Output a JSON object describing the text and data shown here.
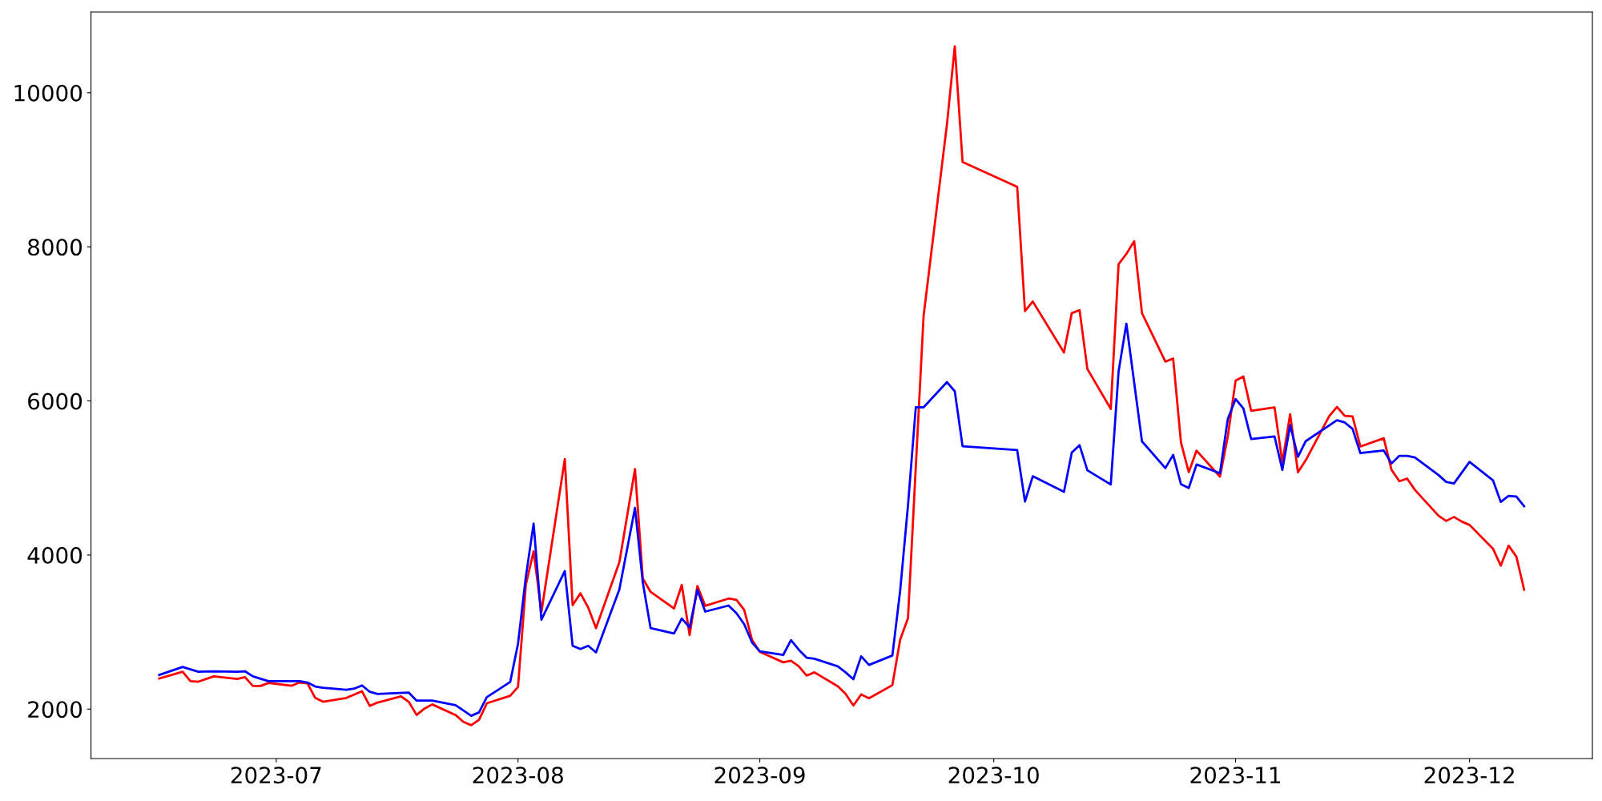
{
  "chart_data": {
    "type": "line",
    "xlim": [
      "2023-06-07T06:00",
      "2023-12-16T18:00"
    ],
    "xticks": [
      {
        "value": "2023-07-01",
        "label": "2023-07"
      },
      {
        "value": "2023-08-01",
        "label": "2023-08"
      },
      {
        "value": "2023-09-01",
        "label": "2023-09"
      },
      {
        "value": "2023-10-01",
        "label": "2023-10"
      },
      {
        "value": "2023-11-01",
        "label": "2023-11"
      },
      {
        "value": "2023-12-01",
        "label": "2023-12"
      }
    ],
    "ylim": [
      1358,
      11048
    ],
    "yticks": [
      2000,
      4000,
      6000,
      8000,
      10000
    ],
    "grid": false,
    "marker": "none",
    "line_style": "solid",
    "series": [
      {
        "color": "#ff0000",
        "x": [
          "2023-06-16",
          "2023-06-19",
          "2023-06-20",
          "2023-06-21",
          "2023-06-23",
          "2023-06-26",
          "2023-06-27",
          "2023-06-28",
          "2023-06-29",
          "2023-06-30",
          "2023-07-03",
          "2023-07-04",
          "2023-07-05",
          "2023-07-06",
          "2023-07-07",
          "2023-07-10",
          "2023-07-12",
          "2023-07-13",
          "2023-07-14",
          "2023-07-17",
          "2023-07-18",
          "2023-07-19",
          "2023-07-20",
          "2023-07-21",
          "2023-07-24",
          "2023-07-25",
          "2023-07-26",
          "2023-07-27",
          "2023-07-28",
          "2023-07-31",
          "2023-08-01",
          "2023-08-02",
          "2023-08-03",
          "2023-08-04",
          "2023-08-07",
          "2023-08-08",
          "2023-08-09",
          "2023-08-10",
          "2023-08-11",
          "2023-08-14",
          "2023-08-16",
          "2023-08-17",
          "2023-08-18",
          "2023-08-21",
          "2023-08-22",
          "2023-08-23",
          "2023-08-24",
          "2023-08-25",
          "2023-08-28",
          "2023-08-29",
          "2023-08-30",
          "2023-08-31",
          "2023-09-01",
          "2023-09-04",
          "2023-09-05",
          "2023-09-06",
          "2023-09-07",
          "2023-09-08",
          "2023-09-11",
          "2023-09-12",
          "2023-09-13",
          "2023-09-14",
          "2023-09-15",
          "2023-09-18",
          "2023-09-19",
          "2023-09-20",
          "2023-09-22",
          "2023-09-25",
          "2023-09-26",
          "2023-09-27",
          "2023-10-04",
          "2023-10-05",
          "2023-10-06",
          "2023-10-10",
          "2023-10-11",
          "2023-10-12",
          "2023-10-13",
          "2023-10-16",
          "2023-10-17",
          "2023-10-18",
          "2023-10-19",
          "2023-10-20",
          "2023-10-23",
          "2023-10-24",
          "2023-10-25",
          "2023-10-26",
          "2023-10-27",
          "2023-10-30",
          "2023-10-31",
          "2023-11-01",
          "2023-11-02",
          "2023-11-03",
          "2023-11-06",
          "2023-11-07",
          "2023-11-08",
          "2023-11-09",
          "2023-11-10",
          "2023-11-13",
          "2023-11-14",
          "2023-11-15",
          "2023-11-16",
          "2023-11-17",
          "2023-11-20",
          "2023-11-21",
          "2023-11-22",
          "2023-11-23",
          "2023-11-24",
          "2023-11-27",
          "2023-11-28",
          "2023-11-29",
          "2023-11-30",
          "2023-12-01",
          "2023-12-04",
          "2023-12-05",
          "2023-12-06",
          "2023-12-07",
          "2023-12-08"
        ],
        "values": [
          2397,
          2485,
          2363,
          2356,
          2425,
          2391,
          2415,
          2300,
          2300,
          2339,
          2304,
          2345,
          2335,
          2145,
          2096,
          2145,
          2231,
          2041,
          2085,
          2165,
          2093,
          1923,
          2006,
          2061,
          1923,
          1833,
          1791,
          1861,
          2075,
          2173,
          2287,
          3611,
          4048,
          3260,
          5245,
          3349,
          3503,
          3318,
          3051,
          3908,
          5116,
          3694,
          3521,
          3305,
          3612,
          2961,
          3598,
          3340,
          3435,
          3417,
          3288,
          2900,
          2744,
          2607,
          2628,
          2555,
          2435,
          2477,
          2296,
          2198,
          2047,
          2190,
          2141,
          2311,
          2903,
          3180,
          7102,
          9593,
          10602,
          9101,
          8779,
          7165,
          7291,
          6629,
          7140,
          7178,
          6415,
          5897,
          7775,
          7908,
          8073,
          7140,
          6510,
          6550,
          5460,
          5075,
          5355,
          5018,
          5534,
          6262,
          6318,
          5872,
          5916,
          5200,
          5828,
          5074,
          5230,
          5801,
          5922,
          5807,
          5798,
          5408,
          5516,
          5105,
          4958,
          4992,
          4845,
          4512,
          4442,
          4494,
          4434,
          4390,
          4083,
          3862,
          4122,
          3979,
          3550
        ]
      },
      {
        "color": "#0000ff",
        "x": [
          "2023-06-16",
          "2023-06-19",
          "2023-06-21",
          "2023-06-23",
          "2023-06-26",
          "2023-06-27",
          "2023-06-28",
          "2023-06-30",
          "2023-07-04",
          "2023-07-05",
          "2023-07-06",
          "2023-07-07",
          "2023-07-10",
          "2023-07-11",
          "2023-07-12",
          "2023-07-13",
          "2023-07-14",
          "2023-07-18",
          "2023-07-19",
          "2023-07-21",
          "2023-07-24",
          "2023-07-26",
          "2023-07-27",
          "2023-07-28",
          "2023-07-31",
          "2023-08-01",
          "2023-08-02",
          "2023-08-03",
          "2023-08-04",
          "2023-08-07",
          "2023-08-08",
          "2023-08-09",
          "2023-08-10",
          "2023-08-11",
          "2023-08-14",
          "2023-08-16",
          "2023-08-17",
          "2023-08-18",
          "2023-08-21",
          "2023-08-22",
          "2023-08-23",
          "2023-08-24",
          "2023-08-25",
          "2023-08-28",
          "2023-08-29",
          "2023-08-30",
          "2023-08-31",
          "2023-09-01",
          "2023-09-04",
          "2023-09-05",
          "2023-09-06",
          "2023-09-07",
          "2023-09-08",
          "2023-09-11",
          "2023-09-12",
          "2023-09-13",
          "2023-09-14",
          "2023-09-15",
          "2023-09-18",
          "2023-09-19",
          "2023-09-20",
          "2023-09-21",
          "2023-09-22",
          "2023-09-25",
          "2023-09-26",
          "2023-09-27",
          "2023-10-04",
          "2023-10-05",
          "2023-10-06",
          "2023-10-10",
          "2023-10-11",
          "2023-10-12",
          "2023-10-13",
          "2023-10-16",
          "2023-10-17",
          "2023-10-18",
          "2023-10-20",
          "2023-10-23",
          "2023-10-24",
          "2023-10-25",
          "2023-10-26",
          "2023-10-27",
          "2023-10-30",
          "2023-10-31",
          "2023-11-01",
          "2023-11-02",
          "2023-11-03",
          "2023-11-06",
          "2023-11-07",
          "2023-11-08",
          "2023-11-09",
          "2023-11-10",
          "2023-11-14",
          "2023-11-15",
          "2023-11-16",
          "2023-11-17",
          "2023-11-20",
          "2023-11-21",
          "2023-11-22",
          "2023-11-23",
          "2023-11-24",
          "2023-11-27",
          "2023-11-28",
          "2023-11-29",
          "2023-12-01",
          "2023-12-04",
          "2023-12-05",
          "2023-12-06",
          "2023-12-07",
          "2023-12-08"
        ],
        "values": [
          2443,
          2547,
          2485,
          2491,
          2485,
          2491,
          2425,
          2363,
          2363,
          2345,
          2293,
          2276,
          2252,
          2266,
          2307,
          2224,
          2196,
          2214,
          2110,
          2110,
          2051,
          1913,
          1957,
          2155,
          2352,
          2848,
          3714,
          4408,
          3160,
          3792,
          2822,
          2779,
          2822,
          2736,
          3555,
          4612,
          3642,
          3051,
          2981,
          3176,
          3059,
          3546,
          3266,
          3344,
          3245,
          3102,
          2865,
          2749,
          2702,
          2895,
          2770,
          2667,
          2654,
          2555,
          2477,
          2387,
          2685,
          2573,
          2695,
          3540,
          4643,
          5917,
          5917,
          6244,
          6125,
          5412,
          5361,
          4694,
          5022,
          4820,
          5330,
          5425,
          5100,
          4915,
          6380,
          7003,
          5475,
          5128,
          5300,
          4920,
          4870,
          5175,
          5062,
          5764,
          6024,
          5902,
          5504,
          5538,
          5105,
          5686,
          5275,
          5478,
          5750,
          5720,
          5638,
          5322,
          5356,
          5188,
          5287,
          5287,
          5266,
          5040,
          4949,
          4928,
          5209,
          4970,
          4689,
          4767,
          4758,
          4633
        ]
      }
    ]
  }
}
